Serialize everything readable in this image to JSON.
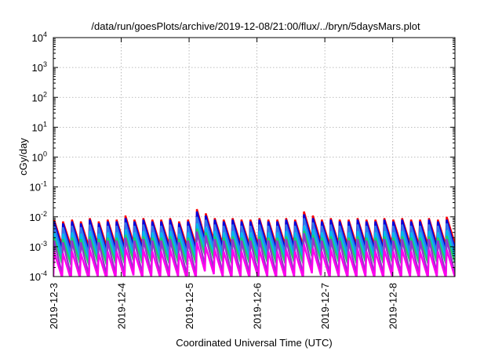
{
  "chart_data": {
    "type": "line",
    "title": "/data/run/goesPlots/archive/2019-12-08/21:00/flux/../bryn/5daysMars.plot",
    "xlabel": "Coordinated Universal Time (UTC)",
    "ylabel": "cGy/day",
    "y_scale": "log",
    "ylim": [
      0.0001,
      10000
    ],
    "y_ticks": [
      {
        "value": 0.0001,
        "base": "10",
        "exp": "-4"
      },
      {
        "value": 0.001,
        "base": "10",
        "exp": "-3"
      },
      {
        "value": 0.01,
        "base": "10",
        "exp": "-2"
      },
      {
        "value": 0.1,
        "base": "10",
        "exp": "-1"
      },
      {
        "value": 1,
        "base": "10",
        "exp": "0"
      },
      {
        "value": 10,
        "base": "10",
        "exp": "1"
      },
      {
        "value": 100,
        "base": "10",
        "exp": "2"
      },
      {
        "value": 1000,
        "base": "10",
        "exp": "3"
      },
      {
        "value": 10000,
        "base": "10",
        "exp": "4"
      }
    ],
    "xlim": [
      "2019-12-03",
      "2019-12-08 22:00"
    ],
    "x_ticks": [
      "2019-12-3",
      "2019-12-4",
      "2019-12-5",
      "2019-12-6",
      "2019-12-7",
      "2019-12-8"
    ],
    "grid": true,
    "legend": "none",
    "series": [
      {
        "color": "#ff0000",
        "peaks": [
          0.008,
          0.007,
          0.008,
          0.007,
          0.009,
          0.007,
          0.008,
          0.008,
          0.011,
          0.008,
          0.009,
          0.008,
          0.008,
          0.009,
          0.007,
          0.008,
          0.018,
          0.013,
          0.009,
          0.008,
          0.009,
          0.008,
          0.008,
          0.009,
          0.008,
          0.008,
          0.009,
          0.008,
          0.015,
          0.011,
          0.008,
          0.009,
          0.008,
          0.008,
          0.009,
          0.008,
          0.008,
          0.009,
          0.008,
          0.009,
          0.008,
          0.008,
          0.009,
          0.008,
          0.01
        ],
        "troughs": [
          0.0011,
          0.001,
          0.0011,
          0.001,
          0.0012,
          0.001,
          0.0011,
          0.0011,
          0.0013,
          0.0011,
          0.0012,
          0.0011,
          0.0011,
          0.0012,
          0.001,
          0.0011,
          0.002,
          0.0016,
          0.0012,
          0.0011,
          0.0012,
          0.0011,
          0.0011,
          0.0012,
          0.0011,
          0.0011,
          0.0012,
          0.0011,
          0.0018,
          0.0014,
          0.0011,
          0.0012,
          0.0011,
          0.0011,
          0.0012,
          0.0011,
          0.0011,
          0.0012,
          0.0011,
          0.0012,
          0.0011,
          0.0011,
          0.0012,
          0.0011,
          0.0013
        ]
      },
      {
        "color": "#0000dd",
        "peaks": [
          0.007,
          0.006,
          0.007,
          0.006,
          0.008,
          0.006,
          0.007,
          0.007,
          0.009,
          0.007,
          0.008,
          0.007,
          0.007,
          0.008,
          0.006,
          0.007,
          0.015,
          0.011,
          0.008,
          0.007,
          0.008,
          0.007,
          0.007,
          0.008,
          0.007,
          0.007,
          0.008,
          0.007,
          0.012,
          0.009,
          0.007,
          0.008,
          0.007,
          0.007,
          0.008,
          0.007,
          0.007,
          0.008,
          0.007,
          0.008,
          0.007,
          0.007,
          0.008,
          0.007,
          0.008
        ],
        "troughs": [
          0.0008,
          0.0007,
          0.0008,
          0.0007,
          0.0009,
          0.0007,
          0.0008,
          0.0008,
          0.001,
          0.0008,
          0.0009,
          0.0008,
          0.0008,
          0.0009,
          0.0007,
          0.0008,
          0.0016,
          0.0012,
          0.0009,
          0.0008,
          0.0009,
          0.0008,
          0.0008,
          0.0009,
          0.0008,
          0.0008,
          0.0009,
          0.0008,
          0.0014,
          0.001,
          0.0008,
          0.0009,
          0.0008,
          0.0008,
          0.0009,
          0.0008,
          0.0008,
          0.0009,
          0.0008,
          0.0009,
          0.0008,
          0.0008,
          0.0009,
          0.0008,
          0.0009
        ]
      },
      {
        "color": "#3377ee",
        "peaks": [
          0.005,
          0.0045,
          0.005,
          0.0045,
          0.0055,
          0.0045,
          0.005,
          0.005,
          0.0065,
          0.005,
          0.0055,
          0.005,
          0.005,
          0.0055,
          0.0045,
          0.005,
          0.01,
          0.008,
          0.0055,
          0.005,
          0.0055,
          0.005,
          0.005,
          0.0055,
          0.005,
          0.005,
          0.0055,
          0.005,
          0.009,
          0.0065,
          0.005,
          0.0055,
          0.005,
          0.005,
          0.0055,
          0.005,
          0.005,
          0.0055,
          0.005,
          0.0055,
          0.005,
          0.005,
          0.0055,
          0.005,
          0.006
        ],
        "troughs": [
          0.0006,
          0.00055,
          0.0006,
          0.00055,
          0.00065,
          0.00055,
          0.0006,
          0.0006,
          0.00075,
          0.0006,
          0.00065,
          0.0006,
          0.0006,
          0.00065,
          0.00055,
          0.0006,
          0.0012,
          0.0009,
          0.00065,
          0.0006,
          0.00065,
          0.0006,
          0.0006,
          0.00065,
          0.0006,
          0.0006,
          0.00065,
          0.0006,
          0.001,
          0.00075,
          0.0006,
          0.00065,
          0.0006,
          0.0006,
          0.00065,
          0.0006,
          0.0006,
          0.00065,
          0.0006,
          0.00065,
          0.0006,
          0.0006,
          0.00065,
          0.0006,
          0.0007
        ]
      },
      {
        "color": "#00bbee",
        "peaks": [
          0.003,
          0.0027,
          0.003,
          0.0027,
          0.0033,
          0.0027,
          0.003,
          0.003,
          0.0038,
          0.003,
          0.0033,
          0.003,
          0.003,
          0.0033,
          0.0027,
          0.003,
          0.006,
          0.0045,
          0.0033,
          0.003,
          0.0033,
          0.003,
          0.003,
          0.0033,
          0.003,
          0.003,
          0.0033,
          0.003,
          0.005,
          0.0038,
          0.003,
          0.0033,
          0.003,
          0.003,
          0.0033,
          0.003,
          0.003,
          0.0033,
          0.003,
          0.0033,
          0.003,
          0.003,
          0.0033,
          0.003,
          0.0035
        ],
        "troughs": [
          0.0004,
          0.00036,
          0.0004,
          0.00036,
          0.00044,
          0.00036,
          0.0004,
          0.0004,
          0.0005,
          0.0004,
          0.00044,
          0.0004,
          0.0004,
          0.00044,
          0.00036,
          0.0004,
          0.0008,
          0.0006,
          0.00044,
          0.0004,
          0.00044,
          0.0004,
          0.0004,
          0.00044,
          0.0004,
          0.0004,
          0.00044,
          0.0004,
          0.0007,
          0.0005,
          0.0004,
          0.00044,
          0.0004,
          0.0004,
          0.00044,
          0.0004,
          0.0004,
          0.00044,
          0.0004,
          0.00044,
          0.0004,
          0.0004,
          0.00044,
          0.0004,
          0.00046
        ]
      },
      {
        "color": "#22cc66",
        "peaks": [
          0.002,
          0.0018,
          0.002,
          0.0018,
          0.0022,
          0.0018,
          0.002,
          0.002,
          0.0025,
          0.002,
          0.0022,
          0.002,
          0.002,
          0.0022,
          0.0018,
          0.002,
          0.004,
          0.003,
          0.0022,
          0.002,
          0.0022,
          0.002,
          0.002,
          0.0022,
          0.002,
          0.002,
          0.0022,
          0.002,
          0.0034,
          0.0025,
          0.002,
          0.0022,
          0.002,
          0.002,
          0.0022,
          0.002,
          0.002,
          0.0022,
          0.002,
          0.0022,
          0.002,
          0.002,
          0.0022,
          0.002,
          0.0023
        ],
        "troughs": [
          0.00028,
          0.00025,
          0.00028,
          0.00025,
          0.00031,
          0.00025,
          0.00028,
          0.00028,
          0.00035,
          0.00028,
          0.00031,
          0.00028,
          0.00028,
          0.00031,
          0.00025,
          0.00028,
          0.00055,
          0.0004,
          0.00031,
          0.00028,
          0.00031,
          0.00028,
          0.00028,
          0.00031,
          0.00028,
          0.00028,
          0.00031,
          0.00028,
          0.00048,
          0.00035,
          0.00028,
          0.00031,
          0.00028,
          0.00028,
          0.00031,
          0.00028,
          0.00028,
          0.00031,
          0.00028,
          0.00031,
          0.00028,
          0.00028,
          0.00031,
          0.00028,
          0.0003
        ]
      },
      {
        "color": "#9933cc",
        "peaks": [
          0.0016,
          0.0014,
          0.0016,
          0.0014,
          0.0018,
          0.0014,
          0.0016,
          0.0016,
          0.002,
          0.0016,
          0.0018,
          0.0016,
          0.0016,
          0.0018,
          0.0014,
          0.0016,
          0.0032,
          0.0024,
          0.0018,
          0.0016,
          0.0018,
          0.0016,
          0.0016,
          0.0018,
          0.0016,
          0.0016,
          0.0018,
          0.0016,
          0.0028,
          0.002,
          0.0016,
          0.0018,
          0.0016,
          0.0016,
          0.0018,
          0.0016,
          0.0016,
          0.0018,
          0.0016,
          0.0018,
          0.0016,
          0.0016,
          0.0018,
          0.0016,
          0.0018
        ],
        "troughs": [
          0.00012,
          0.00011,
          0.00012,
          0.00011,
          0.00013,
          0.00011,
          0.00012,
          0.00012,
          0.00015,
          0.00012,
          0.00013,
          0.00012,
          0.00012,
          0.00013,
          0.00011,
          0.00012,
          0.00024,
          0.00018,
          0.00013,
          0.00012,
          0.00013,
          0.00012,
          0.00012,
          0.00013,
          0.00012,
          0.00012,
          0.00013,
          0.00012,
          0.0002,
          0.00015,
          0.00012,
          0.00013,
          0.00012,
          0.00012,
          0.00013,
          0.00012,
          0.00012,
          0.00013,
          0.00012,
          0.00013,
          0.00012,
          0.00012,
          0.00013,
          0.00012,
          0.00013
        ]
      },
      {
        "color": "#ff00ee",
        "peaks": [
          0.0007,
          0.0006,
          0.0007,
          0.0006,
          0.0008,
          0.0006,
          0.0007,
          0.0007,
          0.0009,
          0.0007,
          0.0008,
          0.0007,
          0.0007,
          0.0008,
          0.0006,
          0.0007,
          0.0014,
          0.001,
          0.0008,
          0.0007,
          0.0008,
          0.0007,
          0.0007,
          0.0008,
          0.0007,
          0.0007,
          0.0008,
          0.0007,
          0.0012,
          0.0009,
          0.0007,
          0.0008,
          0.0007,
          0.0007,
          0.0008,
          0.0007,
          0.0007,
          0.0008,
          0.0007,
          0.0008,
          0.0007,
          0.0007,
          0.0008,
          0.0007,
          0.0008
        ],
        "troughs": [
          9e-05,
          8e-05,
          9e-05,
          8e-05,
          0.0001,
          8e-05,
          9e-05,
          9e-05,
          0.00011,
          9e-05,
          0.0001,
          9e-05,
          9e-05,
          0.0001,
          8e-05,
          9e-05,
          0.00015,
          0.00012,
          0.0001,
          9e-05,
          0.0001,
          9e-05,
          9e-05,
          0.0001,
          9e-05,
          9e-05,
          0.0001,
          9e-05,
          0.00013,
          0.00011,
          9e-05,
          0.0001,
          9e-05,
          9e-05,
          0.0001,
          9e-05,
          9e-05,
          0.0001,
          9e-05,
          0.0001,
          9e-05,
          9e-05,
          0.0001,
          9e-05,
          0.0001
        ]
      }
    ]
  }
}
